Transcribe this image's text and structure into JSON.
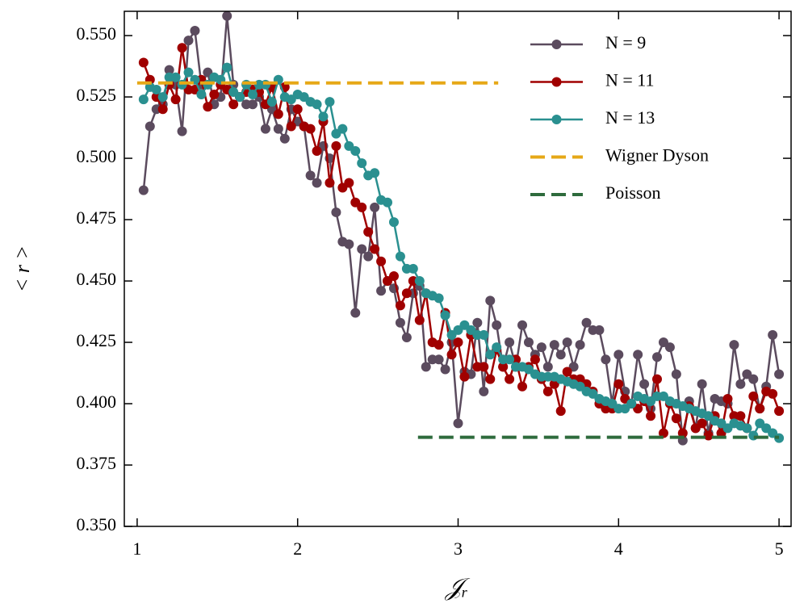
{
  "chart_data": {
    "type": "line",
    "xlabel": "𝒥ᵣ",
    "ylabel": "< r >",
    "xlim": [
      0.92,
      5.075
    ],
    "ylim": [
      0.35,
      0.5599
    ],
    "xticks": [
      1,
      2,
      3,
      4,
      5
    ],
    "yticks": [
      {
        "value": 0.35,
        "label": "0.350"
      },
      {
        "value": 0.375,
        "label": "0.375"
      },
      {
        "value": 0.4,
        "label": "0.400"
      },
      {
        "value": 0.425,
        "label": "0.425"
      },
      {
        "value": 0.45,
        "label": "0.450"
      },
      {
        "value": 0.475,
        "label": "0.475"
      },
      {
        "value": 0.5,
        "label": "0.500"
      },
      {
        "value": 0.525,
        "label": "0.525"
      },
      {
        "value": 0.55,
        "label": "0.550"
      }
    ],
    "legend": "upper right",
    "x": [
      1.04,
      1.08,
      1.12,
      1.16,
      1.2,
      1.24,
      1.28,
      1.32,
      1.36,
      1.4,
      1.44,
      1.48,
      1.52,
      1.56,
      1.6,
      1.64,
      1.68,
      1.72,
      1.76,
      1.8,
      1.84,
      1.88,
      1.92,
      1.96,
      2.0,
      2.04,
      2.08,
      2.12,
      2.16,
      2.2,
      2.24,
      2.28,
      2.32,
      2.36,
      2.4,
      2.44,
      2.48,
      2.52,
      2.56,
      2.6,
      2.64,
      2.68,
      2.72,
      2.76,
      2.8,
      2.84,
      2.88,
      2.92,
      2.96,
      3.0,
      3.04,
      3.08,
      3.12,
      3.16,
      3.2,
      3.24,
      3.28,
      3.32,
      3.36,
      3.4,
      3.44,
      3.48,
      3.52,
      3.56,
      3.6,
      3.64,
      3.68,
      3.72,
      3.76,
      3.8,
      3.84,
      3.88,
      3.92,
      3.96,
      4.0,
      4.04,
      4.08,
      4.12,
      4.16,
      4.2,
      4.24,
      4.28,
      4.32,
      4.36,
      4.4,
      4.44,
      4.48,
      4.52,
      4.56,
      4.6,
      4.64,
      4.68,
      4.72,
      4.76,
      4.8,
      4.84,
      4.88,
      4.92,
      4.96,
      5.0
    ],
    "series": [
      {
        "name": "N = 9",
        "color": "#5b4b5e",
        "marker": true,
        "values": [
          0.487,
          0.513,
          0.52,
          0.522,
          0.536,
          0.53,
          0.511,
          0.548,
          0.552,
          0.53,
          0.535,
          0.522,
          0.525,
          0.558,
          0.53,
          0.525,
          0.522,
          0.522,
          0.525,
          0.512,
          0.52,
          0.512,
          0.508,
          0.52,
          0.515,
          0.513,
          0.493,
          0.49,
          0.505,
          0.5,
          0.478,
          0.466,
          0.465,
          0.437,
          0.463,
          0.46,
          0.48,
          0.446,
          0.45,
          0.447,
          0.433,
          0.427,
          0.445,
          0.448,
          0.415,
          0.418,
          0.418,
          0.414,
          0.425,
          0.392,
          0.413,
          0.412,
          0.433,
          0.405,
          0.442,
          0.432,
          0.415,
          0.425,
          0.415,
          0.432,
          0.425,
          0.42,
          0.423,
          0.415,
          0.424,
          0.42,
          0.425,
          0.415,
          0.424,
          0.433,
          0.43,
          0.43,
          0.418,
          0.4,
          0.42,
          0.405,
          0.4,
          0.42,
          0.408,
          0.398,
          0.419,
          0.425,
          0.423,
          0.412,
          0.385,
          0.401,
          0.39,
          0.408,
          0.388,
          0.402,
          0.401,
          0.4,
          0.424,
          0.408,
          0.412,
          0.41,
          0.398,
          0.407,
          0.428,
          0.412
        ]
      },
      {
        "name": "N = 11",
        "color": "#a00000",
        "marker": true,
        "values": [
          0.539,
          0.532,
          0.525,
          0.52,
          0.53,
          0.524,
          0.545,
          0.528,
          0.528,
          0.532,
          0.521,
          0.526,
          0.53,
          0.528,
          0.522,
          0.525,
          0.527,
          0.528,
          0.527,
          0.522,
          0.529,
          0.518,
          0.529,
          0.513,
          0.52,
          0.513,
          0.512,
          0.503,
          0.515,
          0.49,
          0.505,
          0.488,
          0.49,
          0.482,
          0.48,
          0.47,
          0.463,
          0.458,
          0.45,
          0.452,
          0.44,
          0.445,
          0.45,
          0.434,
          0.445,
          0.425,
          0.424,
          0.437,
          0.42,
          0.425,
          0.411,
          0.428,
          0.415,
          0.415,
          0.41,
          0.422,
          0.415,
          0.41,
          0.418,
          0.407,
          0.415,
          0.418,
          0.41,
          0.405,
          0.408,
          0.397,
          0.413,
          0.41,
          0.41,
          0.408,
          0.405,
          0.4,
          0.398,
          0.398,
          0.408,
          0.402,
          0.4,
          0.398,
          0.401,
          0.395,
          0.41,
          0.388,
          0.4,
          0.394,
          0.388,
          0.399,
          0.39,
          0.392,
          0.387,
          0.395,
          0.388,
          0.402,
          0.395,
          0.395,
          0.39,
          0.403,
          0.398,
          0.405,
          0.404,
          0.397
        ]
      },
      {
        "name": "N = 13",
        "color": "#2a9090",
        "marker": true,
        "values": [
          0.524,
          0.529,
          0.528,
          0.525,
          0.533,
          0.533,
          0.53,
          0.535,
          0.532,
          0.526,
          0.53,
          0.533,
          0.532,
          0.537,
          0.527,
          0.525,
          0.53,
          0.526,
          0.53,
          0.53,
          0.523,
          0.532,
          0.525,
          0.524,
          0.526,
          0.525,
          0.523,
          0.522,
          0.517,
          0.523,
          0.51,
          0.512,
          0.505,
          0.503,
          0.498,
          0.493,
          0.494,
          0.483,
          0.482,
          0.474,
          0.46,
          0.455,
          0.455,
          0.45,
          0.445,
          0.444,
          0.443,
          0.436,
          0.428,
          0.43,
          0.432,
          0.43,
          0.428,
          0.428,
          0.42,
          0.423,
          0.418,
          0.418,
          0.415,
          0.415,
          0.414,
          0.412,
          0.411,
          0.411,
          0.411,
          0.41,
          0.409,
          0.408,
          0.407,
          0.405,
          0.404,
          0.402,
          0.401,
          0.4,
          0.398,
          0.398,
          0.4,
          0.403,
          0.402,
          0.401,
          0.403,
          0.403,
          0.401,
          0.4,
          0.399,
          0.398,
          0.397,
          0.396,
          0.395,
          0.393,
          0.392,
          0.39,
          0.392,
          0.391,
          0.39,
          0.387,
          0.392,
          0.39,
          0.388,
          0.386
        ]
      },
      {
        "name": "Wigner Dyson",
        "color": "#e6a817",
        "dashed": true,
        "x": [
          1.0,
          3.25
        ],
        "values": [
          0.5307,
          0.5307
        ]
      },
      {
        "name": "Poisson",
        "color": "#2e6b3c",
        "dashed": true,
        "x": [
          2.75,
          5.0
        ],
        "values": [
          0.3863,
          0.3863
        ]
      }
    ]
  }
}
